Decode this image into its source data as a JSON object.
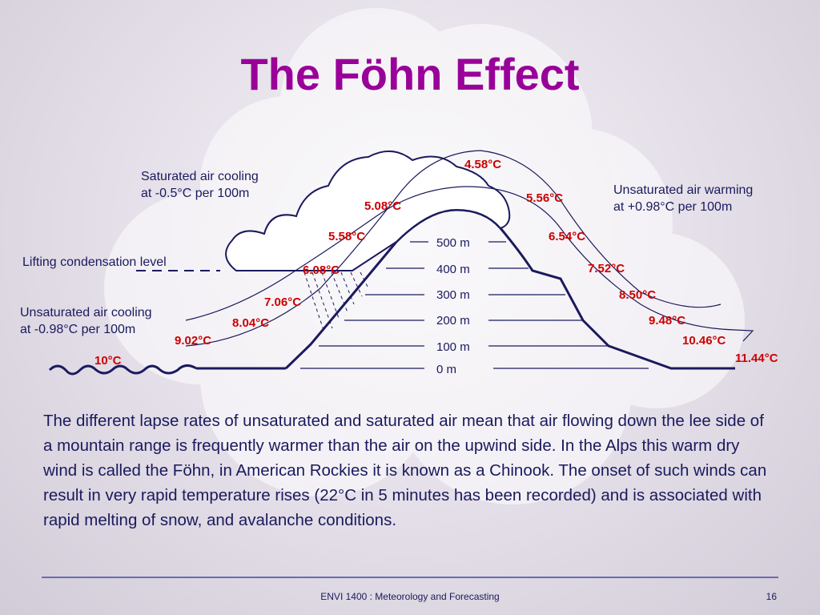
{
  "title": "The Föhn Effect",
  "labels": {
    "saturated_cooling_line1": "Saturated air cooling",
    "saturated_cooling_line2": "at -0.5°C per 100m",
    "unsaturated_warming_line1": "Unsaturated air warming",
    "unsaturated_warming_line2": "at +0.98°C per 100m",
    "lifting_condensation": "Lifting condensation level",
    "unsaturated_cooling_line1": "Unsaturated air cooling",
    "unsaturated_cooling_line2": "at -0.98°C per 100m"
  },
  "altitudes": [
    "500 m",
    "400 m",
    "300 m",
    "200 m",
    "100 m",
    "0 m"
  ],
  "temperatures": {
    "windward": [
      "10°C",
      "9.02°C",
      "8.04°C",
      "7.06°C",
      "6.08°C",
      "5.58°C",
      "5.08°C"
    ],
    "summit": "4.58°C",
    "leeward": [
      "5.56°C",
      "6.54°C",
      "7.52°C",
      "8.50°C",
      "9.48°C",
      "10.46°C",
      "11.44°C"
    ]
  },
  "description": "The different lapse rates of unsaturated and saturated air mean that air flowing down the lee side of a mountain range is frequently warmer than the air on the upwind side. In the Alps this warm dry wind is called the Föhn, in American Rockies it is known as a Chinook. The onset of such winds can result in very rapid temperature rises (22°C in 5 minutes has been recorded) and is associated with rapid melting of snow, and avalanche conditions.",
  "footer": {
    "course": "ENVI 1400 : Meteorology and Forecasting",
    "page": "16"
  },
  "colors": {
    "title": "#990099",
    "temperature": "#cc0000",
    "text": "#1a1a5e",
    "mountain": "#1a1a5e"
  }
}
